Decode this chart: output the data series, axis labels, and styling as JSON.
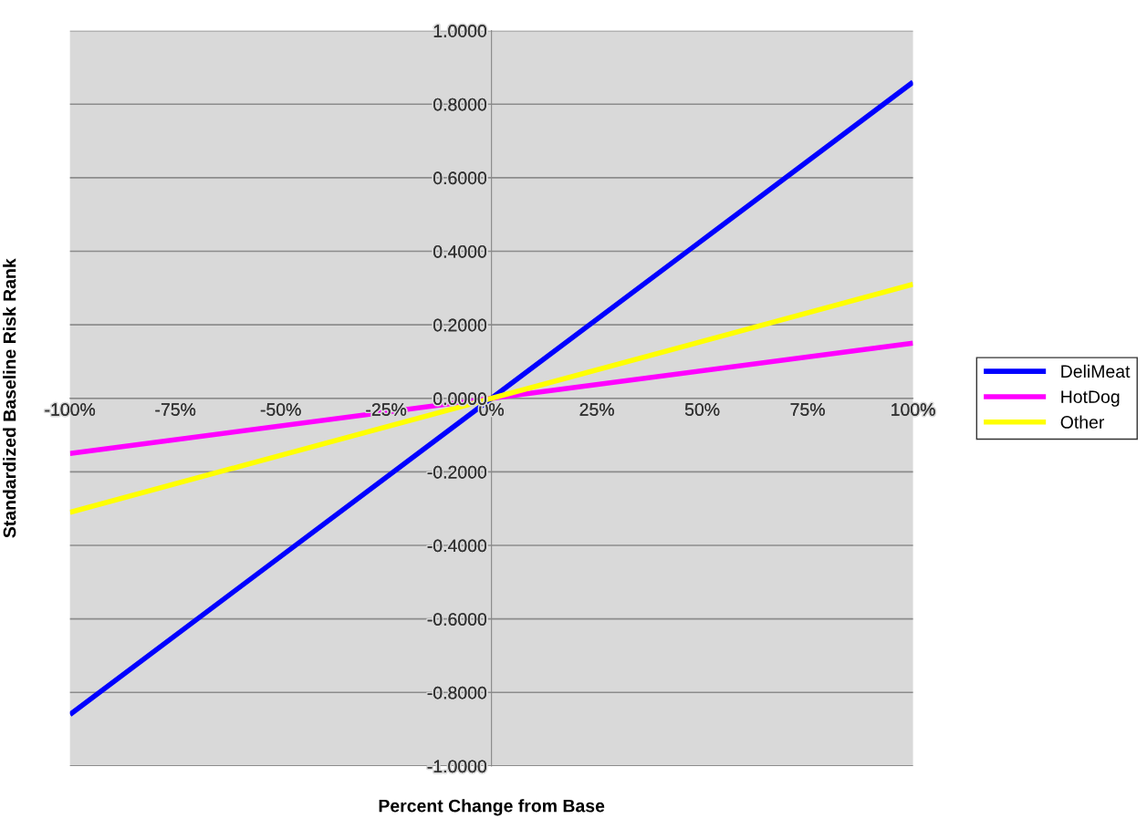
{
  "chart_data": {
    "type": "line",
    "xlabel": "Percent Change from Base",
    "ylabel": "Standardized Baseline Risk Rank",
    "x": [
      -100,
      0,
      100
    ],
    "series": [
      {
        "name": "DeliMeat",
        "color": "#0000ff",
        "values": [
          -0.86,
          0,
          0.86
        ]
      },
      {
        "name": "HotDog",
        "color": "#ff00ff",
        "values": [
          -0.15,
          0,
          0.15
        ]
      },
      {
        "name": "Other",
        "color": "#ffff00",
        "values": [
          -0.31,
          0,
          0.31
        ]
      }
    ],
    "xlim": [
      -100,
      100
    ],
    "xticks": [
      {
        "value": -100,
        "label": "-100%"
      },
      {
        "value": -75,
        "label": "-75%"
      },
      {
        "value": -50,
        "label": "-50%"
      },
      {
        "value": -25,
        "label": "-25%"
      },
      {
        "value": 0,
        "label": "0%"
      },
      {
        "value": 25,
        "label": "25%"
      },
      {
        "value": 50,
        "label": "50%"
      },
      {
        "value": 75,
        "label": "75%"
      },
      {
        "value": 100,
        "label": "100%"
      }
    ],
    "ylim": [
      -1,
      1
    ],
    "yticks": [
      {
        "value": -1,
        "label": "-1.0000"
      },
      {
        "value": -0.8,
        "label": "-0.8000"
      },
      {
        "value": -0.6,
        "label": "-0.6000"
      },
      {
        "value": -0.4,
        "label": "-0.4000"
      },
      {
        "value": -0.2,
        "label": "-0.2000"
      },
      {
        "value": 0,
        "label": "0.0000"
      },
      {
        "value": 0.2,
        "label": "0.2000"
      },
      {
        "value": 0.4,
        "label": "0.4000"
      },
      {
        "value": 0.6,
        "label": "0.6000"
      },
      {
        "value": 0.8,
        "label": "0.8000"
      },
      {
        "value": 1,
        "label": "1.0000"
      }
    ],
    "grid": "y",
    "legend": "right",
    "marker": "none",
    "line_style": "solid"
  }
}
